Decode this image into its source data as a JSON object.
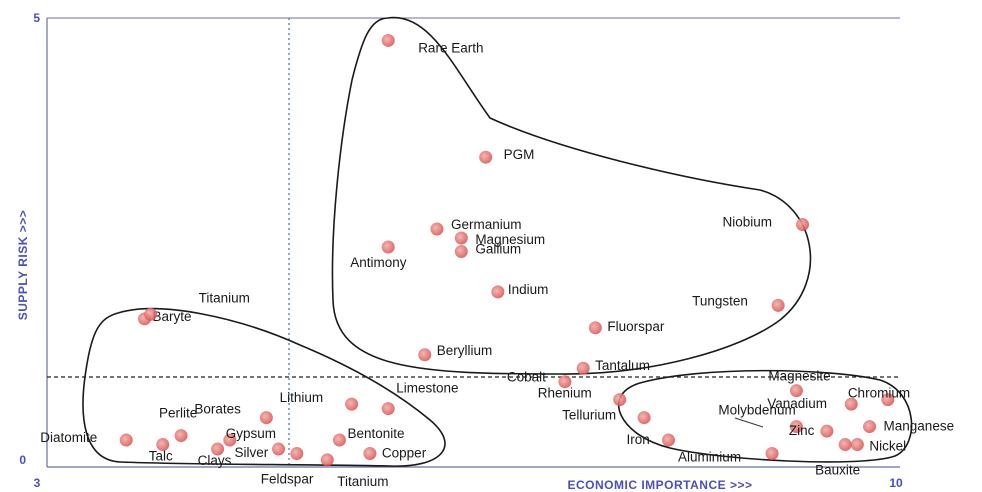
{
  "chart_data": {
    "type": "scatter",
    "xlabel": "ECONOMIC IMPORTANCE >>>",
    "ylabel": "SUPPLY RISK >>>",
    "xlim": [
      3,
      10
    ],
    "ylim": [
      0,
      5
    ],
    "x_ticks": [
      "3",
      "10"
    ],
    "y_ticks": [
      "0",
      "5"
    ],
    "grid": false,
    "threshold_lines": {
      "x": 4.8,
      "y": 1.0
    },
    "point_color": "#d9534f",
    "outline_color": "#1a1a1a",
    "axis_text_color": "#4a4ec0",
    "points": [
      {
        "name": "Rare Earth",
        "x": 5.8,
        "y": 4.75
      },
      {
        "name": "PGM",
        "x": 6.6,
        "y": 3.45
      },
      {
        "name": "Germanium",
        "x": 6.2,
        "y": 2.65
      },
      {
        "name": "Magnesium",
        "x": 6.4,
        "y": 2.55
      },
      {
        "name": "Gallium",
        "x": 6.4,
        "y": 2.4
      },
      {
        "name": "Antimony",
        "x": 5.8,
        "y": 2.45
      },
      {
        "name": "Niobium",
        "x": 9.2,
        "y": 2.7
      },
      {
        "name": "Indium",
        "x": 6.7,
        "y": 1.95
      },
      {
        "name": "Tungsten",
        "x": 9.0,
        "y": 1.8
      },
      {
        "name": "Fluorspar",
        "x": 7.5,
        "y": 1.55
      },
      {
        "name": "Beryllium",
        "x": 6.1,
        "y": 1.25
      },
      {
        "name": "Tantalum",
        "x": 7.4,
        "y": 1.1
      },
      {
        "name": "Cobalt",
        "x": 7.25,
        "y": 0.95
      },
      {
        "name": "Magnesite",
        "x": 9.15,
        "y": 0.85
      },
      {
        "name": "Chromium",
        "x": 9.9,
        "y": 0.75
      },
      {
        "name": "Rhenium",
        "x": 7.7,
        "y": 0.75
      },
      {
        "name": "Vanadium",
        "x": 9.6,
        "y": 0.7
      },
      {
        "name": "Molybdenum",
        "x": 9.15,
        "y": 0.45
      },
      {
        "name": "Tellurium",
        "x": 7.9,
        "y": 0.55
      },
      {
        "name": "Zinc",
        "x": 9.4,
        "y": 0.4
      },
      {
        "name": "Manganese",
        "x": 9.75,
        "y": 0.45
      },
      {
        "name": "Iron",
        "x": 8.1,
        "y": 0.3
      },
      {
        "name": "Nickel",
        "x": 9.65,
        "y": 0.25
      },
      {
        "name": "Aluminium",
        "x": 8.95,
        "y": 0.15
      },
      {
        "name": "Bauxite",
        "x": 9.55,
        "y": 0.25
      },
      {
        "name": "Baryte",
        "x": 3.8,
        "y": 1.65
      },
      {
        "name": "Titanium",
        "x": 3.85,
        "y": 1.7
      },
      {
        "name": "Limestone",
        "x": 5.8,
        "y": 0.65
      },
      {
        "name": "Lithium",
        "x": 5.5,
        "y": 0.7
      },
      {
        "name": "Borates",
        "x": 4.8,
        "y": 0.55
      },
      {
        "name": "Perlite",
        "x": 4.1,
        "y": 0.35
      },
      {
        "name": "Diatomite",
        "x": 3.65,
        "y": 0.3
      },
      {
        "name": "Gypsum",
        "x": 4.5,
        "y": 0.3
      },
      {
        "name": "Bentonite",
        "x": 5.4,
        "y": 0.3
      },
      {
        "name": "Talc",
        "x": 3.95,
        "y": 0.25
      },
      {
        "name": "Clays",
        "x": 4.4,
        "y": 0.2
      },
      {
        "name": "Silver",
        "x": 4.9,
        "y": 0.2
      },
      {
        "name": "Copper",
        "x": 5.65,
        "y": 0.15
      },
      {
        "name": "Feldspar",
        "x": 5.05,
        "y": 0.15
      },
      {
        "name": "Titanium",
        "x": 5.3,
        "y": 0.08
      }
    ]
  }
}
